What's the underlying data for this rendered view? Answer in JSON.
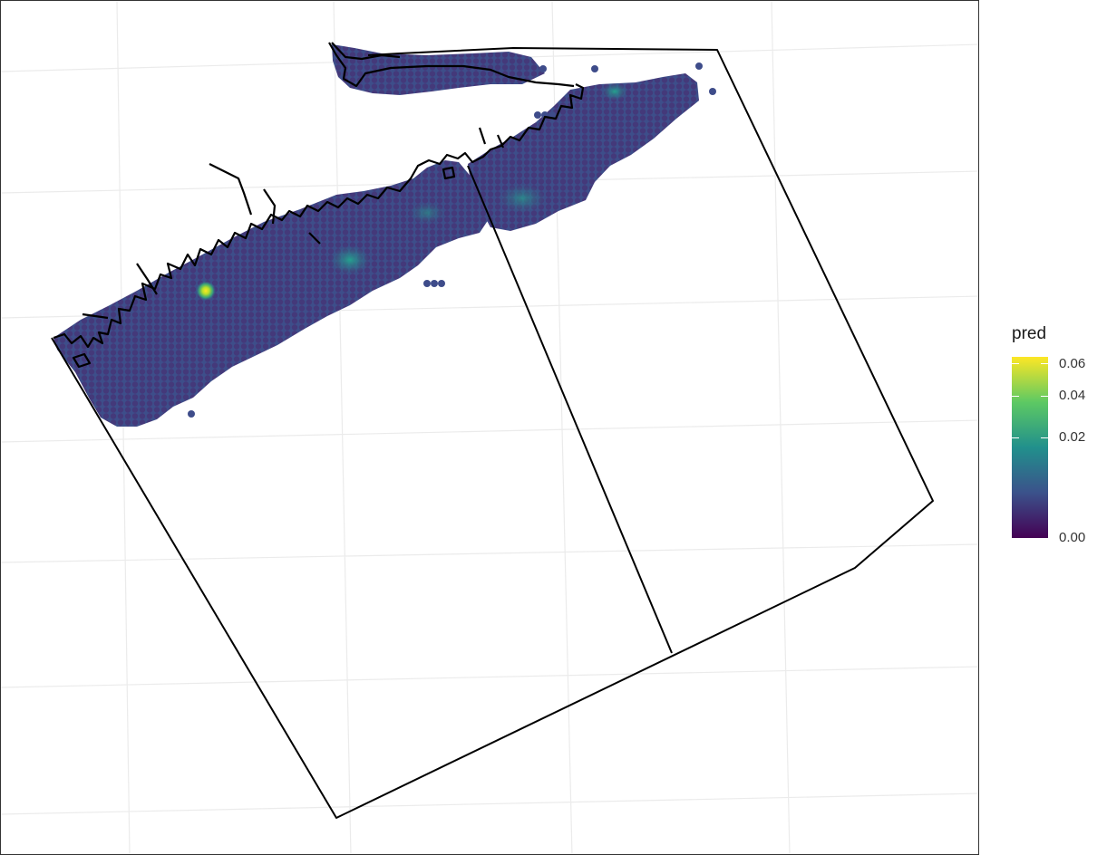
{
  "legend": {
    "title": "pred",
    "ticks": [
      {
        "label": "0.06",
        "value": 0.06
      },
      {
        "label": "0.04",
        "value": 0.04
      },
      {
        "label": "0.02",
        "value": 0.02
      },
      {
        "label": "0.00",
        "value": 0.0
      }
    ],
    "range": [
      0,
      0.065
    ],
    "palette": [
      "#440154",
      "#3b528b",
      "#21908c",
      "#5dc963",
      "#fde725"
    ]
  },
  "map": {
    "gridlines": true,
    "hotspot_value": 0.065,
    "colors": {
      "outline": "#000000",
      "grid": "#ebebeb",
      "background": "#ffffff",
      "panel_border": "#333333"
    }
  }
}
